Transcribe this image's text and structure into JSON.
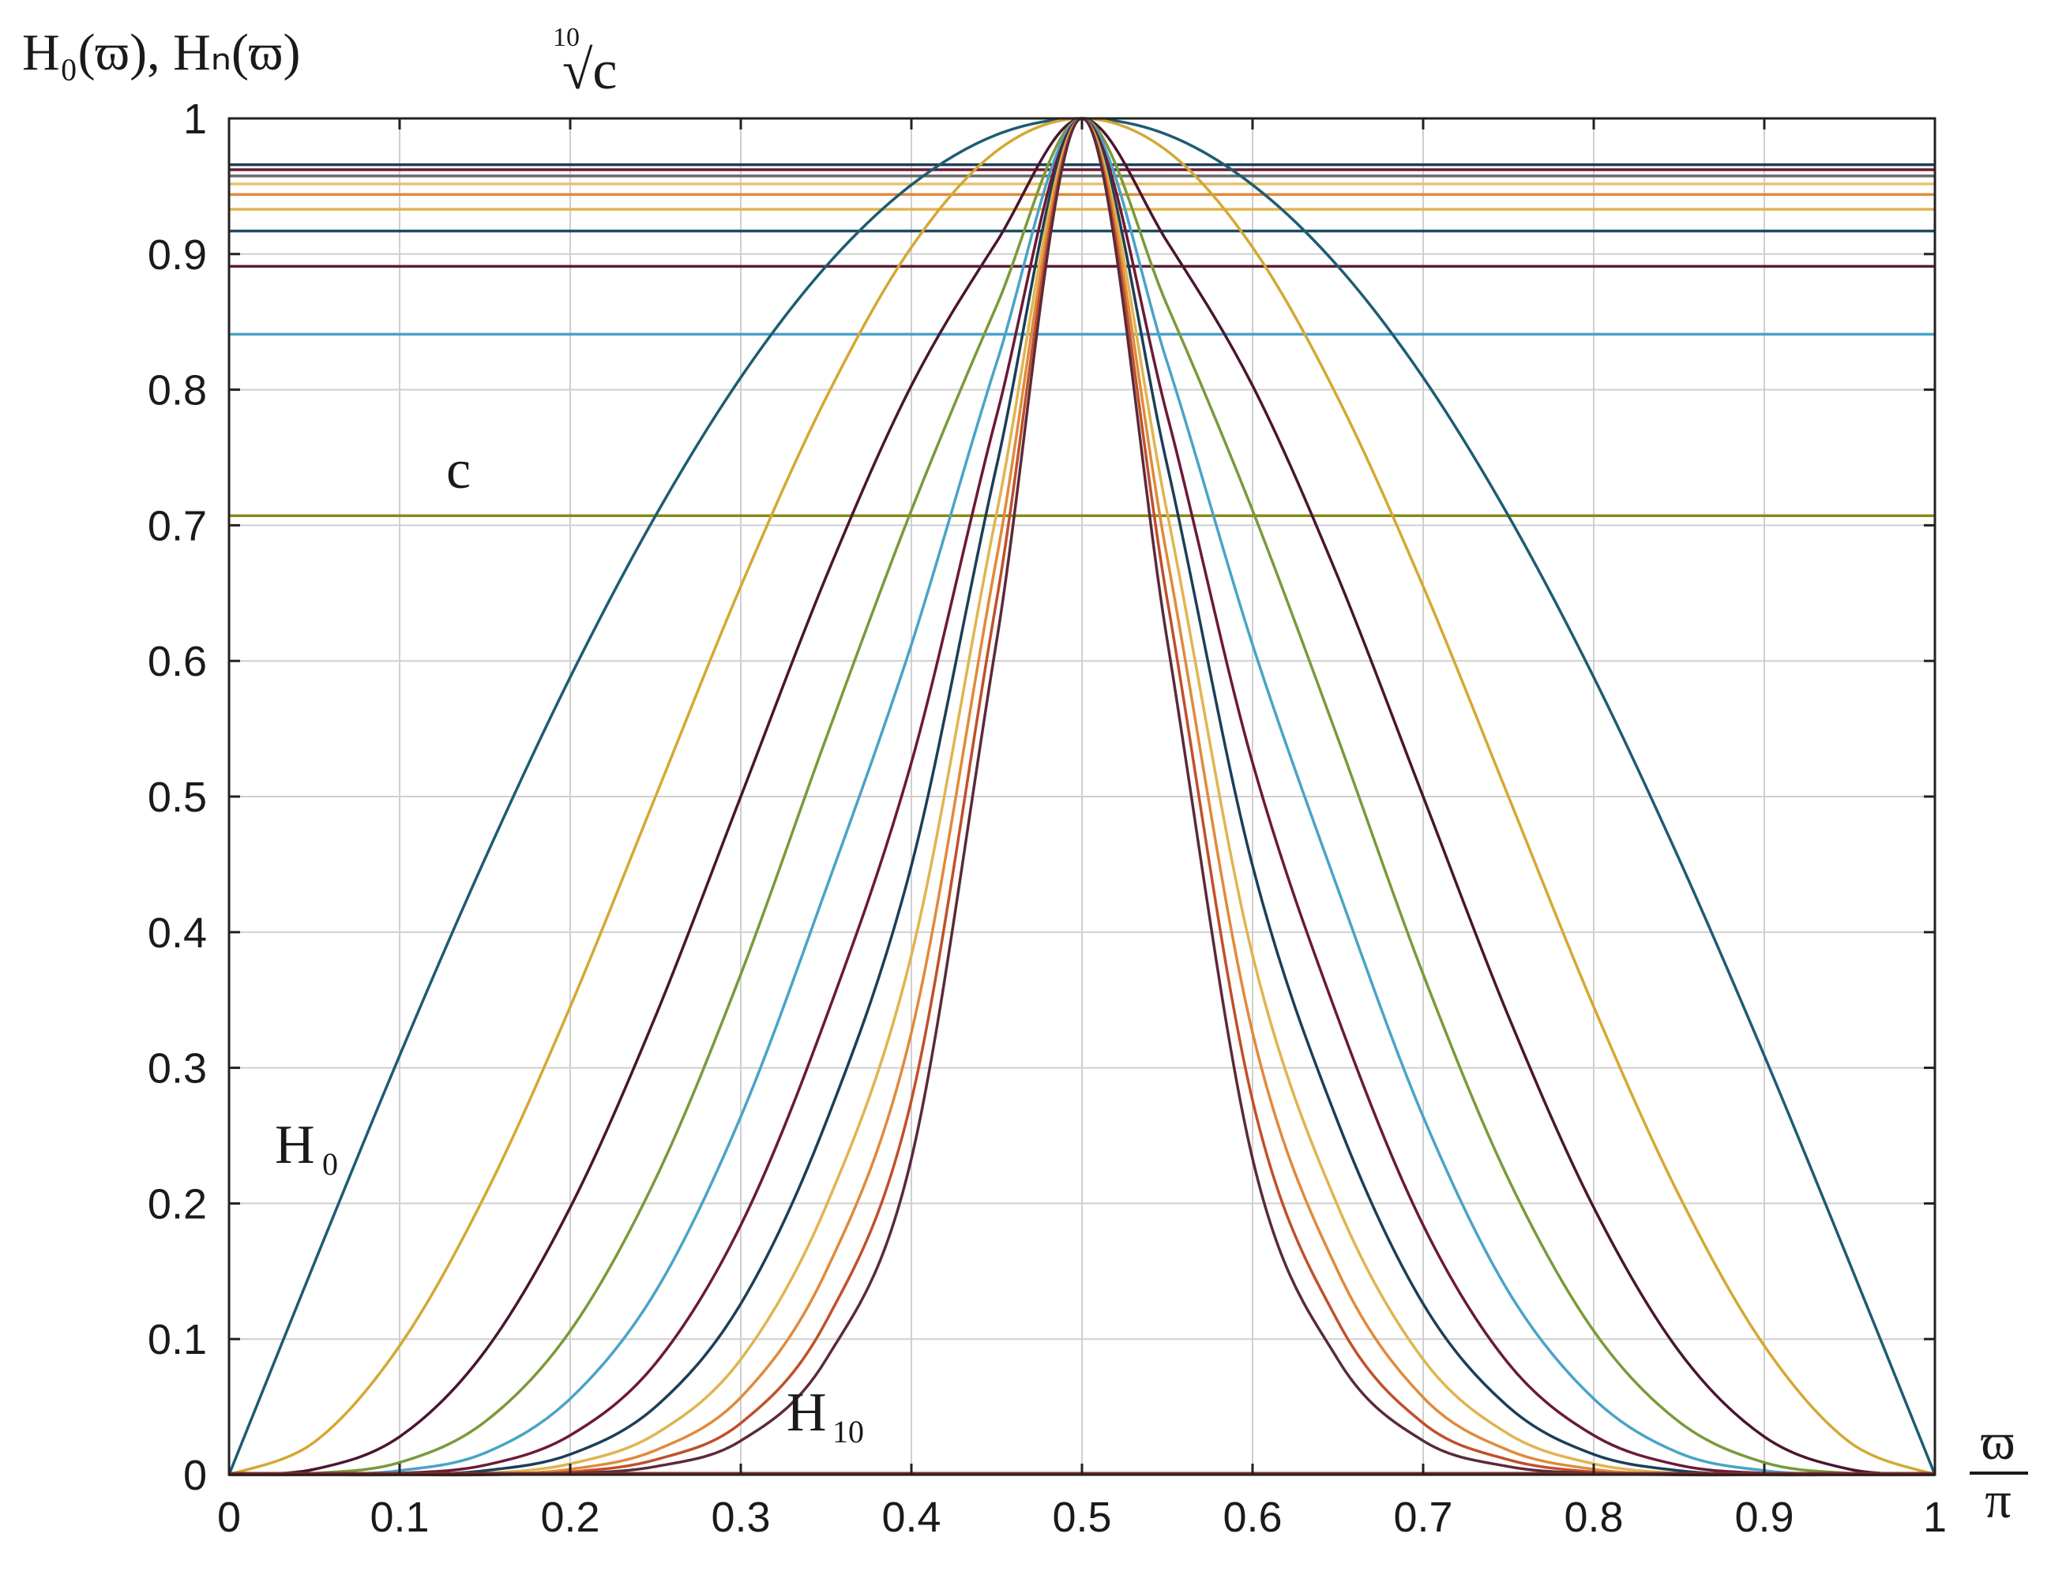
{
  "chart_data": {
    "type": "line",
    "title": "",
    "ylabel": "H₀(ϖ), Hₙ(ϖ)",
    "xlabel_num": "ϖ",
    "xlabel_den": "π",
    "xlim": [
      0,
      1
    ],
    "ylim": [
      0,
      1
    ],
    "grid": true,
    "xticks": [
      "0",
      "0.1",
      "0.2",
      "0.3",
      "0.4",
      "0.5",
      "0.6",
      "0.7",
      "0.8",
      "0.9",
      "1"
    ],
    "yticks": [
      "0",
      "0.1",
      "0.2",
      "0.3",
      "0.4",
      "0.5",
      "0.6",
      "0.7",
      "0.8",
      "0.9",
      "1"
    ],
    "annotations": {
      "root_label": "√c",
      "root_index": "10",
      "c_label": "c",
      "h0_label": "H",
      "h0_sub": "0",
      "h10_label": "H",
      "h10_sub": "10"
    },
    "x": [
      0,
      0.05,
      0.1,
      0.15,
      0.2,
      0.25,
      0.3,
      0.35,
      0.4,
      0.45,
      0.5,
      0.55,
      0.6,
      0.65,
      0.7,
      0.75,
      0.8,
      0.85,
      0.9,
      0.95,
      1
    ],
    "series": [
      {
        "color": "#1d5c73",
        "values": [
          0,
          0.156,
          0.309,
          0.454,
          0.588,
          0.707,
          0.809,
          0.891,
          0.951,
          0.988,
          1,
          0.988,
          0.951,
          0.891,
          0.809,
          0.707,
          0.588,
          0.454,
          0.309,
          0.156,
          0
        ]
      },
      {
        "color": "#d4a832",
        "values": [
          0,
          0.024,
          0.095,
          0.206,
          0.345,
          0.5,
          0.655,
          0.794,
          0.905,
          0.976,
          1,
          0.976,
          0.905,
          0.794,
          0.655,
          0.5,
          0.345,
          0.206,
          0.095,
          0.024,
          0
        ]
      },
      {
        "color": "#4a1530",
        "values": [
          0,
          0.004,
          0.028,
          0.091,
          0.197,
          0.338,
          0.5,
          0.662,
          0.803,
          0.909,
          1,
          0.909,
          0.803,
          0.662,
          0.5,
          0.338,
          0.197,
          0.091,
          0.028,
          0.004,
          0
        ]
      },
      {
        "color": "#7a9a3a",
        "values": [
          0,
          0.001,
          0.009,
          0.039,
          0.106,
          0.218,
          0.369,
          0.543,
          0.711,
          0.862,
          1,
          0.862,
          0.711,
          0.543,
          0.369,
          0.218,
          0.106,
          0.039,
          0.009,
          0.001,
          0
        ]
      },
      {
        "color": "#4aa3c8",
        "values": [
          0,
          0,
          0.003,
          0.016,
          0.056,
          0.135,
          0.264,
          0.432,
          0.612,
          0.82,
          1,
          0.82,
          0.612,
          0.432,
          0.264,
          0.135,
          0.056,
          0.016,
          0.003,
          0,
          0
        ]
      },
      {
        "color": "#6b1a36",
        "values": [
          0,
          0,
          0.001,
          0.007,
          0.029,
          0.082,
          0.184,
          0.337,
          0.525,
          0.781,
          1,
          0.781,
          0.525,
          0.337,
          0.184,
          0.082,
          0.029,
          0.007,
          0.001,
          0,
          0
        ]
      },
      {
        "color": "#1c3f57",
        "values": [
          0,
          0,
          0,
          0.003,
          0.015,
          0.05,
          0.126,
          0.26,
          0.449,
          0.744,
          1,
          0.744,
          0.449,
          0.26,
          0.126,
          0.05,
          0.015,
          0.003,
          0,
          0,
          0
        ]
      },
      {
        "color": "#e0b450",
        "values": [
          0,
          0,
          0,
          0.001,
          0.008,
          0.03,
          0.085,
          0.198,
          0.383,
          0.709,
          1,
          0.709,
          0.383,
          0.198,
          0.085,
          0.03,
          0.008,
          0.001,
          0,
          0,
          0
        ]
      },
      {
        "color": "#e08a3c",
        "values": [
          0,
          0,
          0,
          0,
          0.004,
          0.018,
          0.057,
          0.15,
          0.326,
          0.676,
          1,
          0.676,
          0.326,
          0.15,
          0.057,
          0.018,
          0.004,
          0,
          0,
          0,
          0
        ]
      },
      {
        "color": "#c0502c",
        "values": [
          0,
          0,
          0,
          0,
          0.002,
          0.011,
          0.038,
          0.113,
          0.276,
          0.645,
          1,
          0.645,
          0.276,
          0.113,
          0.038,
          0.011,
          0.002,
          0,
          0,
          0,
          0
        ]
      },
      {
        "color": "#5a2a3a",
        "values": [
          0,
          0,
          0,
          0,
          0.001,
          0.006,
          0.025,
          0.085,
          0.233,
          0.615,
          1,
          0.615,
          0.233,
          0.085,
          0.025,
          0.006,
          0.001,
          0,
          0,
          0,
          0
        ]
      }
    ],
    "hlines": [
      {
        "y": 0.7071,
        "color": "#8a8a1a"
      },
      {
        "y": 0.8409,
        "color": "#4aa3c8"
      },
      {
        "y": 0.8909,
        "color": "#5a1e35"
      },
      {
        "y": 0.917,
        "color": "#1d4a60"
      },
      {
        "y": 0.933,
        "color": "#e0b450"
      },
      {
        "y": 0.9439,
        "color": "#e08a3c"
      },
      {
        "y": 0.9517,
        "color": "#e8c070"
      },
      {
        "y": 0.9576,
        "color": "#6a6a6a"
      },
      {
        "y": 0.9622,
        "color": "#6b1a36"
      },
      {
        "y": 0.9659,
        "color": "#1c3f57"
      }
    ]
  }
}
